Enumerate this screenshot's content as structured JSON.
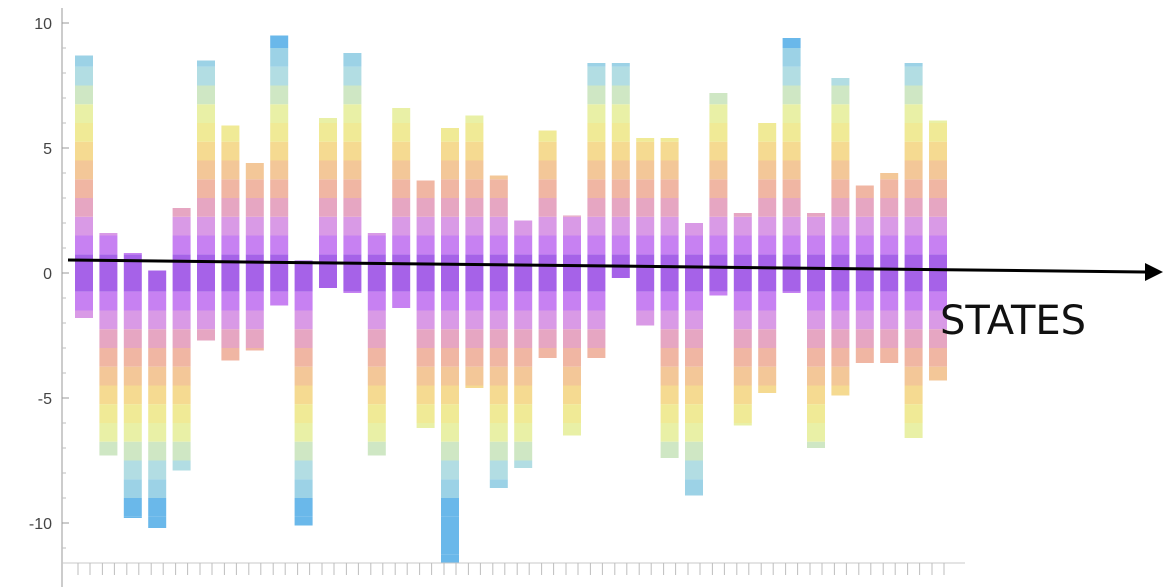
{
  "chart_data": {
    "type": "bar",
    "stacked": true,
    "title": "",
    "xlabel": "",
    "ylabel": "",
    "ylim": [
      -12,
      10.5
    ],
    "y_ticks": [
      10,
      5,
      0,
      -5,
      -10
    ],
    "y_tick_labels": [
      "10",
      "5",
      "0",
      "-5",
      "-10"
    ],
    "grid": false,
    "legend": "none",
    "annotation": {
      "text": "STATES",
      "arrow": "long black arrow crossing the chart near y = 0, pointing right"
    },
    "palette_from_center": [
      "#a662e8",
      "#c781f2",
      "#d99ae6",
      "#e6a6c2",
      "#f0b6a3",
      "#f3c798",
      "#f5da91",
      "#f0ea96",
      "#e9f0a6",
      "#cfe7c4",
      "#b2dde3",
      "#9cd2e6",
      "#6ab8ea"
    ],
    "bars": [
      {
        "top": 8.7,
        "bottom": -1.8
      },
      {
        "top": 1.6,
        "bottom": -7.3
      },
      {
        "top": 0.8,
        "bottom": -9.8
      },
      {
        "top": 0.1,
        "bottom": -10.2
      },
      {
        "top": 2.6,
        "bottom": -7.9
      },
      {
        "top": 8.5,
        "bottom": -2.7
      },
      {
        "top": 5.9,
        "bottom": -3.5
      },
      {
        "top": 4.4,
        "bottom": -3.1
      },
      {
        "top": 9.5,
        "bottom": -1.3
      },
      {
        "top": 0.5,
        "bottom": -10.1
      },
      {
        "top": 6.2,
        "bottom": -0.6
      },
      {
        "top": 8.8,
        "bottom": -0.8
      },
      {
        "top": 1.6,
        "bottom": -7.3
      },
      {
        "top": 6.6,
        "bottom": -1.4
      },
      {
        "top": 3.7,
        "bottom": -6.2
      },
      {
        "top": 5.8,
        "bottom": -11.6
      },
      {
        "top": 6.3,
        "bottom": -4.6
      },
      {
        "top": 3.9,
        "bottom": -8.6
      },
      {
        "top": 2.1,
        "bottom": -7.8
      },
      {
        "top": 5.7,
        "bottom": -3.4
      },
      {
        "top": 2.3,
        "bottom": -6.5
      },
      {
        "top": 8.4,
        "bottom": -3.4
      },
      {
        "top": 8.4,
        "bottom": -0.2
      },
      {
        "top": 5.4,
        "bottom": -2.1
      },
      {
        "top": 5.4,
        "bottom": -7.4
      },
      {
        "top": 2.0,
        "bottom": -8.9
      },
      {
        "top": 7.2,
        "bottom": -0.9
      },
      {
        "top": 2.4,
        "bottom": -6.1
      },
      {
        "top": 6.0,
        "bottom": -4.8
      },
      {
        "top": 9.4,
        "bottom": -0.8
      },
      {
        "top": 2.4,
        "bottom": -7.0
      },
      {
        "top": 7.8,
        "bottom": -4.9
      },
      {
        "top": 3.5,
        "bottom": -3.6
      },
      {
        "top": 4.0,
        "bottom": -3.6
      },
      {
        "top": 8.4,
        "bottom": -6.6
      },
      {
        "top": 6.1,
        "bottom": -4.3
      }
    ]
  }
}
